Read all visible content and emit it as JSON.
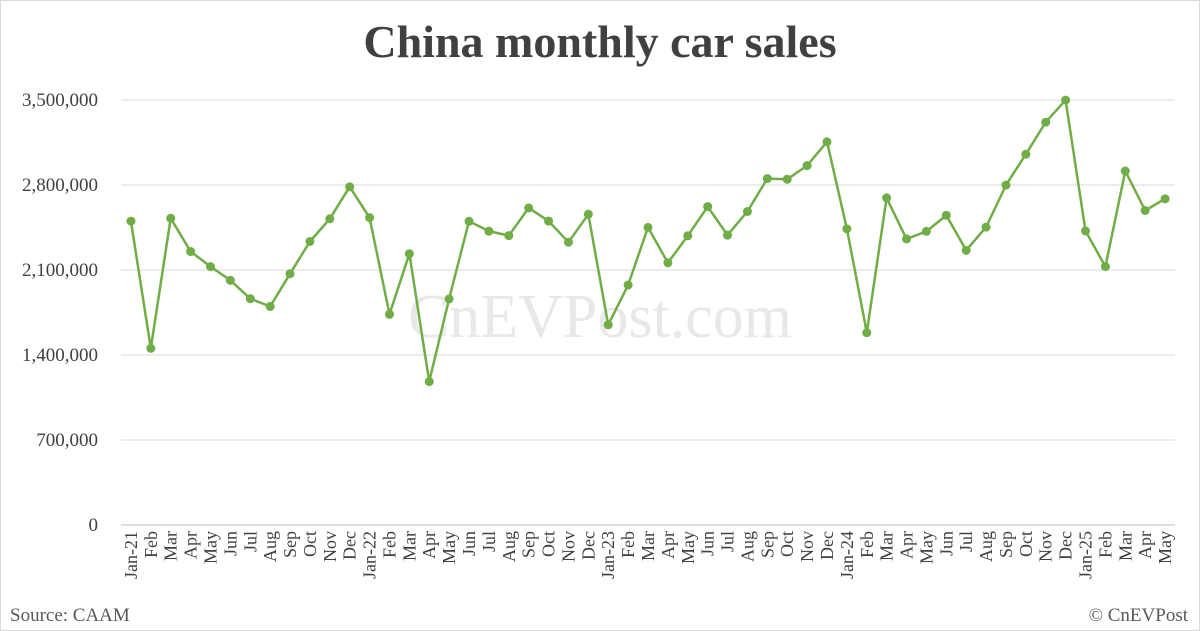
{
  "chart_data": {
    "type": "line",
    "title": "China monthly car sales",
    "xlabel": "",
    "ylabel": "",
    "ylim": [
      0,
      3500000
    ],
    "yticks": [
      {
        "value": 0,
        "label": "0"
      },
      {
        "value": 700000,
        "label": "700,000"
      },
      {
        "value": 1400000,
        "label": "1,400,000"
      },
      {
        "value": 2100000,
        "label": "2,100,000"
      },
      {
        "value": 2800000,
        "label": "2,800,000"
      },
      {
        "value": 3500000,
        "label": "3,500,000"
      }
    ],
    "grid": true,
    "legend": "none",
    "line_color": "#70ad47",
    "categories": [
      "Jan-21",
      "Feb",
      "Mar",
      "Apr",
      "May",
      "Jun",
      "Jul",
      "Aug",
      "Sep",
      "Oct",
      "Nov",
      "Dec",
      "Jan-22",
      "Feb",
      "Mar",
      "Apr",
      "May",
      "Jun",
      "Jul",
      "Aug",
      "Sep",
      "Oct",
      "Nov",
      "Dec",
      "Jan-23",
      "Feb",
      "Mar",
      "Apr",
      "May",
      "Jun",
      "Jul",
      "Aug",
      "Sep",
      "Oct",
      "Nov",
      "Dec",
      "Jan-24",
      "Feb",
      "Mar",
      "Apr",
      "May",
      "Jun",
      "Jul",
      "Aug",
      "Sep",
      "Oct",
      "Nov",
      "Dec",
      "Jan-25",
      "Feb",
      "Mar",
      "Apr",
      "May"
    ],
    "values": [
      2503000,
      1455000,
      2526000,
      2252000,
      2128000,
      2015000,
      1864000,
      1799000,
      2069000,
      2335000,
      2522000,
      2785000,
      2531000,
      1735000,
      2234000,
      1181000,
      1862000,
      2501000,
      2420000,
      2383000,
      2611000,
      2503000,
      2329000,
      2559000,
      1649000,
      1976000,
      2451000,
      2159000,
      2382000,
      2622000,
      2387000,
      2582000,
      2853000,
      2847000,
      2960000,
      3156000,
      2439000,
      1584000,
      2694000,
      2356000,
      2418000,
      2550000,
      2262000,
      2453000,
      2799000,
      3053000,
      3317000,
      3499000,
      2422000,
      2128000,
      2915000,
      2590000,
      2686000
    ]
  },
  "footer": {
    "source": "Source: CAAM",
    "credit": "© CnEVPost"
  },
  "watermark": "CnEVPost.com"
}
